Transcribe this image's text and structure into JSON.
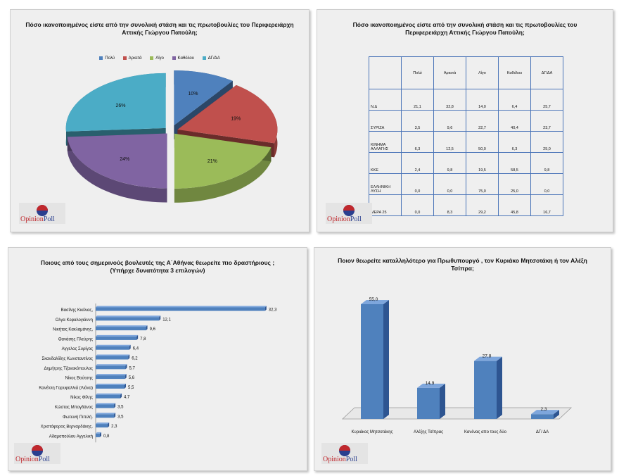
{
  "logo": {
    "part1": "Opinion",
    "part2": "Poll"
  },
  "colors": {
    "blue": "#4f81bd",
    "red": "#c0504d",
    "green": "#9bbb59",
    "purple": "#8064a2",
    "cyan": "#4bacc6",
    "table_border": "#4a74b8"
  },
  "charts": {
    "pie": {
      "title": "Πόσο ικανοποιημένος είστε από την συνολική στάση και τις πρωτοβουλίες του Περιφερειάρχη Αττικής Γιώργου Πατούλη;",
      "legend": [
        "Πολύ",
        "Αρκετά",
        "Λίγο",
        "Καθόλου",
        "ΔΓ/ΔΑ"
      ],
      "labels": [
        "10%",
        "19%",
        "21%",
        "24%",
        "26%"
      ]
    },
    "table": {
      "title": "Πόσο ικανοποιημένος είστε από την συνολική στάση και τις πρωτοβουλίες του Περιφερειάρχη Αττικής Γιώργου Πατούλη;",
      "columns": [
        "Πολύ",
        "Αρκετά",
        "Λίγο",
        "Καθόλου",
        "ΔΓ/ΔΑ"
      ],
      "rows": [
        {
          "label": "Ν.Δ",
          "cells": [
            "21,1",
            "32,8",
            "14,0",
            "6,4",
            "25,7"
          ]
        },
        {
          "label": "ΣΥΡΙΖΑ",
          "cells": [
            "3,5",
            "9,6",
            "22,7",
            "40,4",
            "23,7"
          ]
        },
        {
          "label": "ΚΙΝΗΜΑ ΑΛΛΑΓΗΣ",
          "cells": [
            "6,3",
            "12,5",
            "50,0",
            "6,3",
            "25,0"
          ]
        },
        {
          "label": "ΚΚΕ",
          "cells": [
            "2,4",
            "9,8",
            "19,5",
            "58,5",
            "9,8"
          ]
        },
        {
          "label": "ΕΛΛΗΝΙΚΗ ΛΥΣΗ",
          "cells": [
            "0,0",
            "0,0",
            "75,0",
            "25,0",
            "0,0"
          ]
        },
        {
          "label": "ΜΕΡΑ 25",
          "cells": [
            "0,0",
            "8,3",
            "29,2",
            "45,8",
            "16,7"
          ]
        }
      ]
    },
    "hbar": {
      "title_line1": "Ποιους από τους σημερινούς βουλευτές της Α΄Αθήνας θεωρείτε πιο δραστήριους ;",
      "title_line2": "(Υπήρχε δυνατότητα 3 επιλογών)"
    },
    "vbar": {
      "title_line1": "Ποιον θεωρείτε καταλληλότερο για Πρωθυπουργό , τον Κυριάκο Μητσοτάκη ή τον Αλέξη",
      "title_line2": "Τσίπρα;"
    }
  },
  "chart_data": [
    {
      "type": "pie",
      "title": "Πόσο ικανοποιημένος είστε από την συνολική στάση και τις πρωτοβουλίες του Περιφερειάρχη Αττικής Γιώργου Πατούλη;",
      "categories": [
        "Πολύ",
        "Αρκετά",
        "Λίγο",
        "Καθόλου",
        "ΔΓ/ΔΑ"
      ],
      "values": [
        10,
        19,
        21,
        24,
        26
      ],
      "legend": "top"
    },
    {
      "type": "table",
      "title": "Πόσο ικανοποιημένος είστε από την συνολική στάση και τις πρωτοβουλίες του Περιφερειάρχη Αττικής Γιώργου Πατούλη;",
      "columns": [
        "Πολύ",
        "Αρκετά",
        "Λίγο",
        "Καθόλου",
        "ΔΓ/ΔΑ"
      ],
      "rows": [
        "Ν.Δ",
        "ΣΥΡΙΖΑ",
        "ΚΙΝΗΜΑ ΑΛΛΑΓΗΣ",
        "ΚΚΕ",
        "ΕΛΛΗΝΙΚΗ ΛΥΣΗ",
        "ΜΕΡΑ 25"
      ],
      "values": [
        [
          21.1,
          32.8,
          14.0,
          6.4,
          25.7
        ],
        [
          3.5,
          9.6,
          22.7,
          40.4,
          23.7
        ],
        [
          6.3,
          12.5,
          50.0,
          6.3,
          25.0
        ],
        [
          2.4,
          9.8,
          19.5,
          58.5,
          9.8
        ],
        [
          0.0,
          0.0,
          75.0,
          25.0,
          0.0
        ],
        [
          0.0,
          8.3,
          29.2,
          45.8,
          16.7
        ]
      ]
    },
    {
      "type": "bar",
      "orientation": "horizontal",
      "title": "Ποιους από τους σημερινούς βουλευτές της Α΄Αθήνας θεωρείτε πιο δραστήριους ; (Υπήρχε δυνατότητα 3 επιλογών)",
      "categories": [
        "Βασίλης Κικίλιας,",
        "Ολγα Κεφαλογιάννη",
        "Νικήτας Κακλαμάνης,",
        "Θανάσης Πλεύρης",
        "Αγγελος Συρίγος",
        "Σκανδαλίδης Κωνσταντίνος",
        "Δημήτρης Τζανακόπουλος",
        "Νίκος Βούτσης",
        "Κανέλλη Γαρυφαλλιά (Λιάνα)",
        "Νίκος Φίλης",
        "Κώστας Μπογδάνος",
        "Φωτεινή Πιπιλή.",
        "Χριστόφορος Βερναρδάκης.",
        "Αδαμοπούλου Αγγελική"
      ],
      "values": [
        32.3,
        12.1,
        9.6,
        7.8,
        6.4,
        6.2,
        5.7,
        5.6,
        5.5,
        4.7,
        3.5,
        3.5,
        2.3,
        0.8
      ],
      "labels": [
        "32,3",
        "12,1",
        "9,6",
        "7,8",
        "6,4",
        "6,2",
        "5,7",
        "5,6",
        "5,5",
        "4,7",
        "3,5",
        "3,5",
        "2,3",
        "0,8"
      ],
      "xlim": [
        0,
        33
      ]
    },
    {
      "type": "bar",
      "orientation": "vertical",
      "title": "Ποιον θεωρείτε καταλληλότερο για Πρωθυπουργό , τον Κυριάκο Μητσοτάκη ή τον Αλέξη Τσίπρα;",
      "categories": [
        "Κυριάκος Μητσοτάκης",
        "Αλέξης Τσίπρας",
        "Κανένας απο τους δύο",
        "ΔΓ/ ΔΑ"
      ],
      "values": [
        55.0,
        14.9,
        27.8,
        2.3
      ],
      "labels": [
        "55,0",
        "14,9",
        "27,8",
        "2,3"
      ],
      "ylim": [
        0,
        55
      ]
    }
  ]
}
